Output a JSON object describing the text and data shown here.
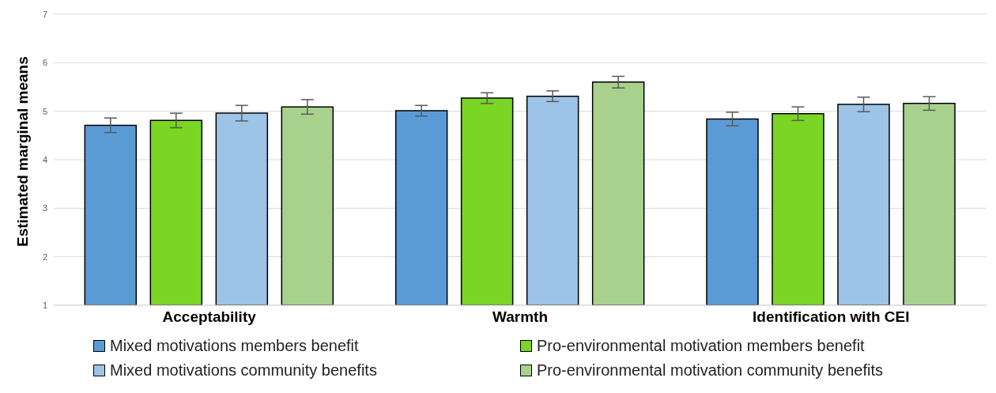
{
  "chart_data": {
    "type": "bar",
    "ylabel": "Estimated marginal means",
    "categories": [
      "Acceptability",
      "Warmth",
      "Identification with CEI"
    ],
    "series": [
      {
        "name": "Mixed motivations members benefit",
        "color": "#5b9bd5",
        "values": [
          4.71,
          5.01,
          4.84
        ],
        "errors": [
          0.15,
          0.11,
          0.14
        ]
      },
      {
        "name": "Pro-environmental motivation members benefit",
        "color": "#7ad524",
        "values": [
          4.81,
          5.27,
          4.95
        ],
        "errors": [
          0.15,
          0.11,
          0.14
        ]
      },
      {
        "name": "Mixed motivations community benefits",
        "color": "#9dc3e6",
        "values": [
          4.96,
          5.31,
          5.14
        ],
        "errors": [
          0.16,
          0.11,
          0.15
        ]
      },
      {
        "name": "Pro-environmental motivation community benefits",
        "color": "#a9d18e",
        "values": [
          5.09,
          5.6,
          5.16
        ],
        "errors": [
          0.15,
          0.12,
          0.14
        ]
      }
    ],
    "ylim": [
      1,
      7
    ],
    "yticks": [
      1,
      2,
      3,
      4,
      5,
      6,
      7
    ],
    "grid": "y",
    "legend": "bottom"
  }
}
